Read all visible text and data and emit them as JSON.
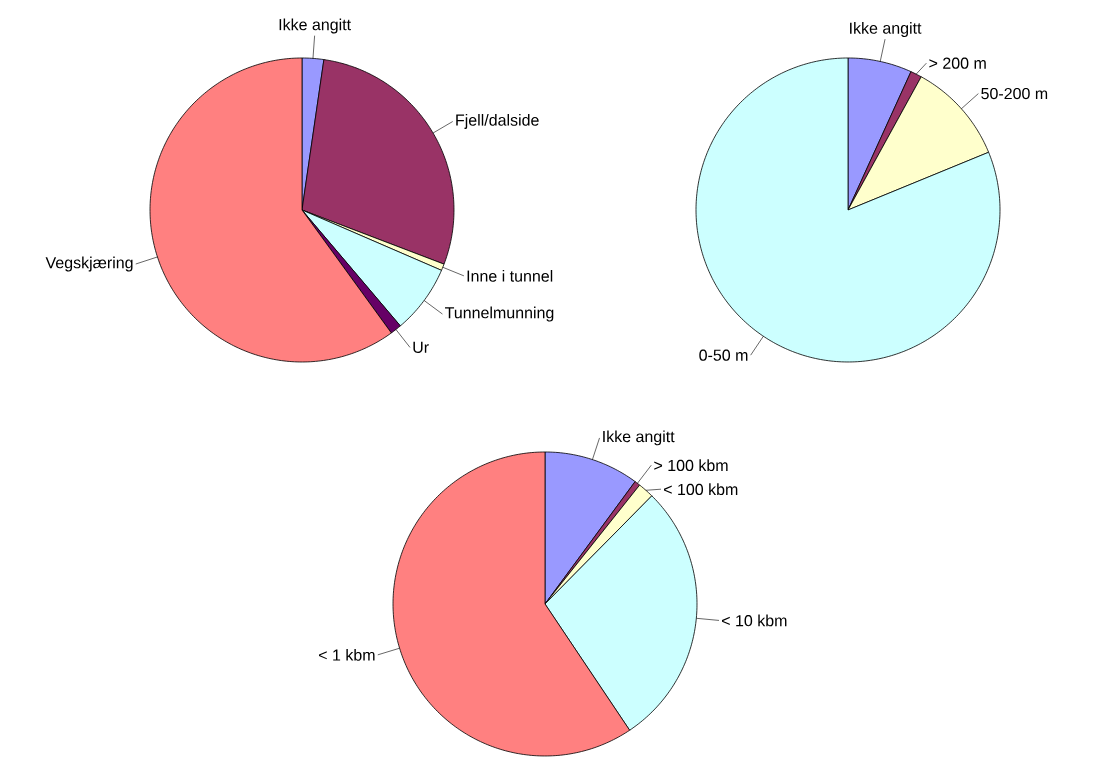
{
  "chart_data": [
    {
      "type": "pie",
      "categories": [
        "Ikke angitt",
        "Fjell/dalside",
        "Inne i tunnel",
        "Tunnelmunning",
        "Ur",
        "Vegskjæring"
      ],
      "values": [
        2.3,
        28.5,
        0.7,
        7.3,
        1.2,
        60.0
      ],
      "colors": [
        "#9999ff",
        "#993366",
        "#ffffcc",
        "#ccffff",
        "#660066",
        "#ff8080"
      ]
    },
    {
      "type": "pie",
      "categories": [
        "Ikke angitt",
        "> 200 m",
        "50-200 m",
        "0-50 m"
      ],
      "values": [
        6.8,
        1.2,
        10.8,
        81.2
      ],
      "colors": [
        "#9999ff",
        "#993366",
        "#ffffcc",
        "#ccffff"
      ]
    },
    {
      "type": "pie",
      "categories": [
        "Ikke angitt",
        "> 100 kbm",
        "< 100 kbm",
        "< 10 kbm",
        "< 1 kbm"
      ],
      "values": [
        10.1,
        0.6,
        1.7,
        28.2,
        59.4
      ],
      "colors": [
        "#9999ff",
        "#993366",
        "#ffffcc",
        "#ccffff",
        "#ff8080"
      ]
    }
  ]
}
